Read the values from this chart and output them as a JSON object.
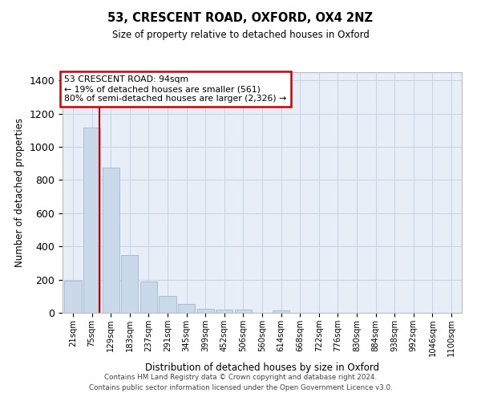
{
  "title1": "53, CRESCENT ROAD, OXFORD, OX4 2NZ",
  "title2": "Size of property relative to detached houses in Oxford",
  "xlabel": "Distribution of detached houses by size in Oxford",
  "ylabel": "Number of detached properties",
  "bar_labels": [
    "21sqm",
    "75sqm",
    "129sqm",
    "183sqm",
    "237sqm",
    "291sqm",
    "345sqm",
    "399sqm",
    "452sqm",
    "506sqm",
    "560sqm",
    "614sqm",
    "668sqm",
    "722sqm",
    "776sqm",
    "830sqm",
    "884sqm",
    "938sqm",
    "992sqm",
    "1046sqm",
    "1100sqm"
  ],
  "bar_values": [
    195,
    1115,
    875,
    350,
    190,
    100,
    52,
    25,
    20,
    17,
    0,
    15,
    0,
    0,
    0,
    0,
    0,
    0,
    0,
    0,
    0
  ],
  "bar_color": "#c9d9ea",
  "bar_edge_color": "#a8bfd4",
  "annotation_text": "53 CRESCENT ROAD: 94sqm\n← 19% of detached houses are smaller (561)\n80% of semi-detached houses are larger (2,326) →",
  "annotation_box_facecolor": "#ffffff",
  "annotation_box_edgecolor": "#cc0000",
  "vline_color": "#cc0000",
  "vline_x": 1.42,
  "ylim": [
    0,
    1450
  ],
  "yticks": [
    0,
    200,
    400,
    600,
    800,
    1000,
    1200,
    1400
  ],
  "grid_color": "#c8d4e4",
  "background_color": "#e8eef8",
  "footer1": "Contains HM Land Registry data © Crown copyright and database right 2024.",
  "footer2": "Contains public sector information licensed under the Open Government Licence v3.0."
}
